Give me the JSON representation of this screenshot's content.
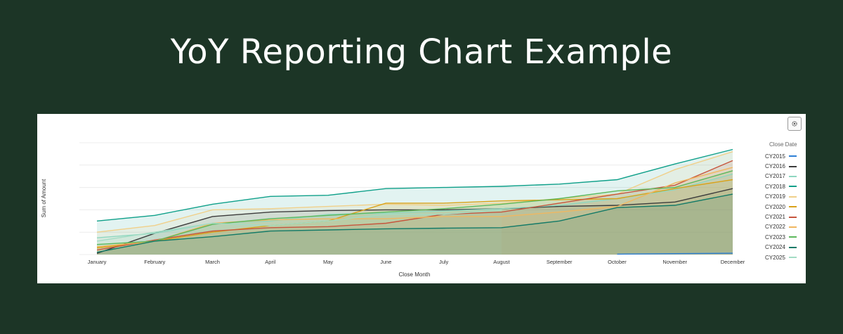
{
  "page": {
    "title": "YoY Reporting Chart Example"
  },
  "toolbar": {
    "settings_icon": "gear-icon"
  },
  "chart_data": {
    "type": "area",
    "title": "",
    "xlabel": "Close Month",
    "ylabel": "Sum of Amount",
    "categories": [
      "January",
      "February",
      "March",
      "April",
      "May",
      "June",
      "July",
      "August",
      "September",
      "October",
      "November",
      "December"
    ],
    "ylim": [
      0,
      5
    ],
    "grid": true,
    "legend": {
      "title": "Close Date",
      "placement": "right"
    },
    "series": [
      {
        "name": "CY2015",
        "color": "#2f80d6",
        "values": [
          null,
          null,
          null,
          null,
          null,
          null,
          null,
          null,
          null,
          0.02,
          0.04,
          0.06
        ]
      },
      {
        "name": "CY2016",
        "color": "#3c3c3c",
        "values": [
          0.05,
          0.95,
          1.7,
          1.9,
          1.97,
          2.0,
          2.0,
          2.05,
          2.15,
          2.2,
          2.35,
          2.95
        ]
      },
      {
        "name": "CY2017",
        "color": "#8fd7c0",
        "values": [
          0.75,
          0.95,
          1.4,
          1.5,
          1.8,
          1.85,
          1.95,
          2.05,
          2.2,
          2.5,
          2.9,
          3.6
        ]
      },
      {
        "name": "CY2018",
        "color": "#0fa08a",
        "values": [
          1.5,
          1.75,
          2.25,
          2.6,
          2.65,
          2.95,
          3.0,
          3.05,
          3.15,
          3.35,
          4.05,
          4.7
        ]
      },
      {
        "name": "CY2019",
        "color": "#f0d08a",
        "values": [
          1.0,
          1.3,
          2.0,
          2.05,
          2.15,
          2.25,
          2.2,
          2.3,
          2.5,
          2.7,
          3.8,
          4.6
        ]
      },
      {
        "name": "CY2020",
        "color": "#d9a21a",
        "values": [
          0.3,
          0.6,
          1.0,
          1.3,
          1.5,
          2.3,
          2.3,
          2.4,
          2.45,
          2.5,
          2.95,
          3.35
        ]
      },
      {
        "name": "CY2021",
        "color": "#c6553d",
        "values": [
          0.2,
          0.65,
          1.05,
          1.2,
          1.25,
          1.4,
          1.8,
          1.9,
          2.3,
          2.7,
          3.1,
          4.2
        ]
      },
      {
        "name": "CY2022",
        "color": "#f0b760",
        "values": [
          0.35,
          0.6,
          1.4,
          1.55,
          1.6,
          1.6,
          1.7,
          1.7,
          1.9,
          2.15,
          3.2,
          3.9
        ]
      },
      {
        "name": "CY2023",
        "color": "#5cb85c",
        "values": [
          0.45,
          0.6,
          1.35,
          1.6,
          1.75,
          1.9,
          2.05,
          2.25,
          2.5,
          2.85,
          3.0,
          3.75
        ]
      },
      {
        "name": "CY2024",
        "color": "#137a67",
        "values": [
          0.1,
          0.6,
          0.8,
          1.05,
          1.1,
          1.15,
          1.18,
          1.2,
          1.5,
          2.1,
          2.2,
          2.7
        ]
      },
      {
        "name": "CY2025",
        "color": "#a3dcc4",
        "values": [
          0.6,
          1.0,
          1.4,
          1.3,
          1.5,
          1.8,
          1.8,
          2.0,
          null,
          null,
          null,
          null
        ]
      }
    ]
  }
}
